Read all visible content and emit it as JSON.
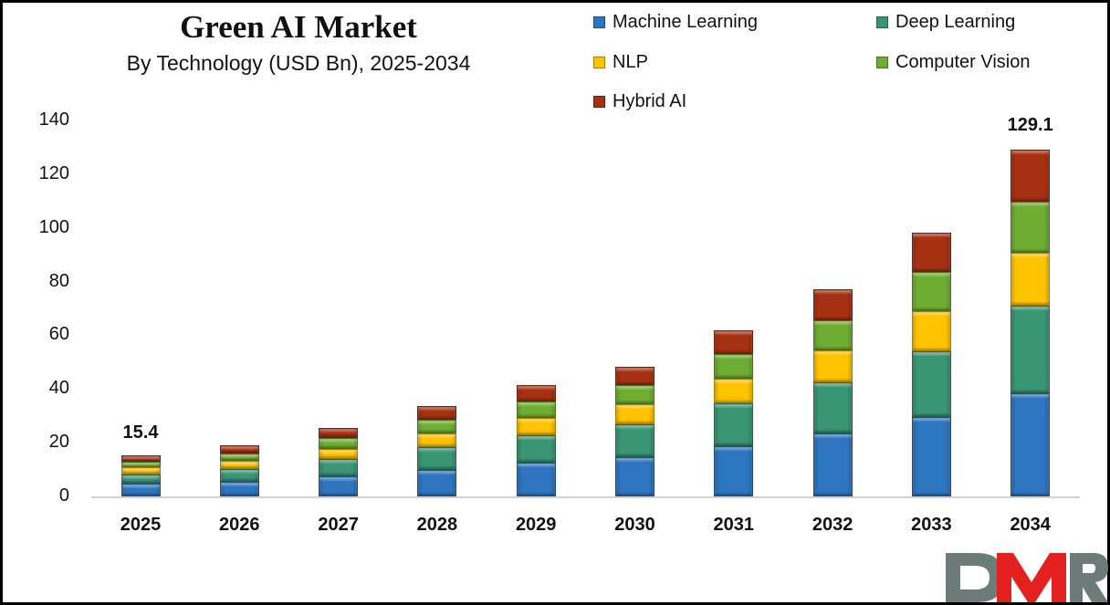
{
  "header": {
    "title": "Green AI Market",
    "subtitle": "By Technology (USD Bn), 2025-2034"
  },
  "legend": {
    "items": [
      {
        "label": "Machine Learning",
        "color": "#2E75C0"
      },
      {
        "label": "Deep Learning",
        "color": "#3A9575"
      },
      {
        "label": "NLP",
        "color": "#FFC300"
      },
      {
        "label": "Computer Vision",
        "color": "#6EAD32"
      },
      {
        "label": "Hybrid AI",
        "color": "#A63012"
      }
    ]
  },
  "annotations": {
    "first_total": "15.4",
    "last_total": "129.1"
  },
  "logo": {
    "text": "DMR",
    "gray": "#6E7B7B",
    "red": "#E4211F"
  },
  "chart_data": {
    "type": "bar",
    "stacked": true,
    "title": "Green AI Market",
    "subtitle": "By Technology (USD Bn), 2025-2034",
    "xlabel": "",
    "ylabel": "",
    "ylim": [
      0,
      140
    ],
    "yticks": [
      0,
      20,
      40,
      60,
      80,
      100,
      120,
      140
    ],
    "grid": false,
    "legend_position": "top-right",
    "categories": [
      "2025",
      "2026",
      "2027",
      "2028",
      "2029",
      "2030",
      "2031",
      "2032",
      "2033",
      "2034"
    ],
    "series": [
      {
        "name": "Machine Learning",
        "color": "#2E75C0",
        "values": [
          4.8,
          5.4,
          7.5,
          9.9,
          12.6,
          14.6,
          18.7,
          23.4,
          29.6,
          38.4
        ]
      },
      {
        "name": "Deep Learning",
        "color": "#3A9575",
        "values": [
          3.4,
          4.8,
          6.5,
          8.5,
          10.2,
          12.2,
          16.0,
          19.0,
          24.5,
          32.5
        ]
      },
      {
        "name": "NLP",
        "color": "#FFC300",
        "values": [
          2.7,
          3.1,
          3.7,
          5.1,
          6.5,
          7.5,
          9.2,
          11.9,
          15.0,
          19.7
        ]
      },
      {
        "name": "Computer Vision",
        "color": "#6EAD32",
        "values": [
          2.1,
          2.7,
          4.1,
          5.1,
          6.1,
          7.1,
          9.2,
          11.2,
          14.6,
          19.1
        ]
      },
      {
        "name": "Hybrid AI",
        "color": "#A63012",
        "values": [
          2.4,
          3.1,
          3.7,
          5.1,
          6.1,
          6.8,
          8.8,
          11.6,
          14.6,
          19.4
        ]
      }
    ],
    "totals": [
      15.4,
      19.1,
      25.5,
      33.7,
      41.5,
      48.2,
      61.9,
      77.1,
      98.3,
      129.1
    ],
    "annotations": [
      {
        "category": "2025",
        "text": "15.4"
      },
      {
        "category": "2034",
        "text": "129.1"
      }
    ]
  }
}
